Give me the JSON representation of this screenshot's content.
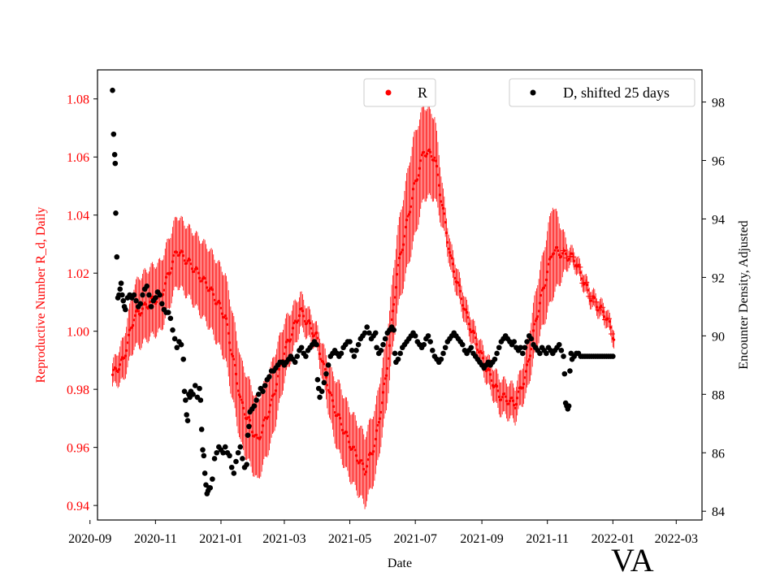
{
  "chart_data": {
    "type": "scatter",
    "region_label": "VA",
    "xlabel": "Date",
    "ylabel_left": "Reproductive Number R_d, Daily",
    "ylabel_right": "Encounter Density, Adjusted",
    "x_ticks": [
      "2020-09",
      "2020-11",
      "2021-01",
      "2021-03",
      "2021-05",
      "2021-07",
      "2021-09",
      "2021-11",
      "2022-01",
      "2022-03"
    ],
    "y_left_ticks": [
      "0.94",
      "0.96",
      "0.98",
      "1.00",
      "1.02",
      "1.04",
      "1.06",
      "1.08"
    ],
    "y_right_ticks": [
      "84",
      "86",
      "88",
      "90",
      "92",
      "94",
      "96",
      "98"
    ],
    "x_range_days": [
      -14,
      549
    ],
    "y_left_range": [
      0.935,
      1.09
    ],
    "y_right_range": [
      83.7,
      99.1
    ],
    "legend_R": "R",
    "legend_D": "D, shifted 25 days",
    "colors": {
      "R": "#ff0000",
      "D": "#000000",
      "left_axis": "#ff0000"
    },
    "series_R": {
      "name": "R",
      "start": "2020-09-22",
      "anchors": [
        [
          0,
          0.985
        ],
        [
          10,
          0.99
        ],
        [
          20,
          1.005
        ],
        [
          35,
          1.01
        ],
        [
          45,
          1.012
        ],
        [
          60,
          1.028
        ],
        [
          75,
          1.022
        ],
        [
          90,
          1.015
        ],
        [
          105,
          1.005
        ],
        [
          120,
          0.975
        ],
        [
          135,
          0.962
        ],
        [
          148,
          0.975
        ],
        [
          160,
          0.993
        ],
        [
          175,
          1.007
        ],
        [
          190,
          0.998
        ],
        [
          205,
          0.975
        ],
        [
          220,
          0.962
        ],
        [
          235,
          0.952
        ],
        [
          245,
          0.962
        ],
        [
          255,
          0.985
        ],
        [
          265,
          1.02
        ],
        [
          280,
          1.048
        ],
        [
          290,
          1.062
        ],
        [
          300,
          1.06
        ],
        [
          315,
          1.025
        ],
        [
          330,
          1.005
        ],
        [
          345,
          0.99
        ],
        [
          360,
          0.978
        ],
        [
          375,
          0.975
        ],
        [
          385,
          0.985
        ],
        [
          395,
          1.005
        ],
        [
          410,
          1.028
        ],
        [
          430,
          1.025
        ],
        [
          445,
          1.012
        ],
        [
          460,
          1.005
        ],
        [
          467,
          0.998
        ]
      ],
      "error_amplitude": [
        [
          0,
          0.004
        ],
        [
          25,
          0.012
        ],
        [
          45,
          0.012
        ],
        [
          70,
          0.012
        ],
        [
          110,
          0.015
        ],
        [
          150,
          0.013
        ],
        [
          175,
          0.006
        ],
        [
          190,
          0.004
        ],
        [
          210,
          0.012
        ],
        [
          230,
          0.012
        ],
        [
          260,
          0.012
        ],
        [
          280,
          0.018
        ],
        [
          300,
          0.014
        ],
        [
          310,
          0.005
        ],
        [
          340,
          0.004
        ],
        [
          360,
          0.006
        ],
        [
          380,
          0.006
        ],
        [
          400,
          0.012
        ],
        [
          410,
          0.016
        ],
        [
          425,
          0.003
        ],
        [
          467,
          0.003
        ]
      ]
    },
    "series_D": {
      "name": "D, shifted 25 days",
      "start": "2020-09-22",
      "points": [
        [
          0,
          98.4
        ],
        [
          1,
          96.9
        ],
        [
          2,
          96.2
        ],
        [
          2.5,
          95.9
        ],
        [
          3,
          94.2
        ],
        [
          4,
          92.7
        ],
        [
          5,
          91.3
        ],
        [
          6,
          91.4
        ],
        [
          7,
          91.6
        ],
        [
          8,
          91.8
        ],
        [
          9,
          91.4
        ],
        [
          10,
          91.2
        ],
        [
          11,
          91.0
        ],
        [
          12,
          90.9
        ],
        [
          14,
          91.3
        ],
        [
          16,
          91.4
        ],
        [
          18,
          91.3
        ],
        [
          20,
          91.4
        ],
        [
          22,
          91.2
        ],
        [
          24,
          91.0
        ],
        [
          26,
          91.1
        ],
        [
          28,
          91.4
        ],
        [
          30,
          91.6
        ],
        [
          32,
          91.7
        ],
        [
          34,
          91.4
        ],
        [
          36,
          91.0
        ],
        [
          38,
          91.2
        ],
        [
          40,
          91.3
        ],
        [
          42,
          91.5
        ],
        [
          44,
          91.4
        ],
        [
          46,
          91.1
        ],
        [
          48,
          90.9
        ],
        [
          50,
          90.8
        ],
        [
          52,
          90.8
        ],
        [
          54,
          90.6
        ],
        [
          56,
          90.2
        ],
        [
          58,
          89.9
        ],
        [
          60,
          89.6
        ],
        [
          62,
          89.8
        ],
        [
          64,
          89.7
        ],
        [
          66,
          89.2
        ],
        [
          67,
          88.1
        ],
        [
          68,
          87.8
        ],
        [
          69,
          87.3
        ],
        [
          70,
          87.1
        ],
        [
          71,
          88.0
        ],
        [
          72,
          87.9
        ],
        [
          73,
          88.1
        ],
        [
          75,
          88.0
        ],
        [
          77,
          88.3
        ],
        [
          79,
          87.9
        ],
        [
          81,
          88.2
        ],
        [
          82,
          87.8
        ],
        [
          83,
          86.8
        ],
        [
          84,
          86.1
        ],
        [
          85,
          85.9
        ],
        [
          86,
          85.3
        ],
        [
          87,
          84.9
        ],
        [
          88,
          84.6
        ],
        [
          89,
          84.7
        ],
        [
          90,
          84.8
        ],
        [
          91,
          84.8
        ],
        [
          93,
          85.1
        ],
        [
          95,
          85.8
        ],
        [
          97,
          86.0
        ],
        [
          99,
          86.2
        ],
        [
          101,
          86.1
        ],
        [
          103,
          86.0
        ],
        [
          105,
          86.2
        ],
        [
          107,
          86.0
        ],
        [
          109,
          85.9
        ],
        [
          111,
          85.5
        ],
        [
          113,
          85.3
        ],
        [
          115,
          85.7
        ],
        [
          117,
          86.0
        ],
        [
          119,
          86.2
        ],
        [
          121,
          85.8
        ],
        [
          123,
          85.5
        ],
        [
          125,
          85.6
        ],
        [
          126,
          86.6
        ],
        [
          127,
          86.9
        ],
        [
          128,
          87.4
        ],
        [
          130,
          87.5
        ],
        [
          132,
          87.6
        ],
        [
          134,
          87.8
        ],
        [
          136,
          88.0
        ],
        [
          138,
          88.2
        ],
        [
          140,
          88.1
        ],
        [
          142,
          88.3
        ],
        [
          144,
          88.5
        ],
        [
          146,
          88.6
        ],
        [
          148,
          88.8
        ],
        [
          150,
          88.8
        ],
        [
          152,
          88.9
        ],
        [
          154,
          89.0
        ],
        [
          156,
          89.1
        ],
        [
          158,
          89.1
        ],
        [
          160,
          89.0
        ],
        [
          162,
          89.1
        ],
        [
          164,
          89.2
        ],
        [
          166,
          89.3
        ],
        [
          168,
          89.2
        ],
        [
          170,
          89.1
        ],
        [
          172,
          89.3
        ],
        [
          174,
          89.5
        ],
        [
          176,
          89.6
        ],
        [
          178,
          89.4
        ],
        [
          180,
          89.3
        ],
        [
          182,
          89.5
        ],
        [
          184,
          89.6
        ],
        [
          186,
          89.7
        ],
        [
          188,
          89.8
        ],
        [
          190,
          89.7
        ],
        [
          191,
          88.5
        ],
        [
          192,
          88.2
        ],
        [
          193,
          87.9
        ],
        [
          195,
          88.1
        ],
        [
          197,
          88.4
        ],
        [
          199,
          88.7
        ],
        [
          201,
          89.0
        ],
        [
          203,
          89.3
        ],
        [
          205,
          89.4
        ],
        [
          207,
          89.5
        ],
        [
          209,
          89.4
        ],
        [
          211,
          89.3
        ],
        [
          213,
          89.4
        ],
        [
          215,
          89.6
        ],
        [
          217,
          89.7
        ],
        [
          219,
          89.8
        ],
        [
          221,
          89.8
        ],
        [
          223,
          89.5
        ],
        [
          225,
          89.3
        ],
        [
          227,
          89.5
        ],
        [
          229,
          89.7
        ],
        [
          231,
          89.9
        ],
        [
          233,
          90.0
        ],
        [
          235,
          90.1
        ],
        [
          237,
          90.3
        ],
        [
          239,
          90.1
        ],
        [
          241,
          89.9
        ],
        [
          243,
          90.0
        ],
        [
          245,
          90.1
        ],
        [
          246,
          89.6
        ],
        [
          248,
          89.4
        ],
        [
          250,
          89.5
        ],
        [
          252,
          89.7
        ],
        [
          254,
          89.9
        ],
        [
          256,
          90.1
        ],
        [
          258,
          90.2
        ],
        [
          260,
          90.3
        ],
        [
          262,
          90.2
        ],
        [
          263,
          89.4
        ],
        [
          264,
          89.1
        ],
        [
          266,
          89.2
        ],
        [
          268,
          89.4
        ],
        [
          270,
          89.6
        ],
        [
          272,
          89.7
        ],
        [
          274,
          89.8
        ],
        [
          276,
          89.9
        ],
        [
          278,
          90.0
        ],
        [
          280,
          90.1
        ],
        [
          282,
          90.0
        ],
        [
          284,
          89.8
        ],
        [
          286,
          89.7
        ],
        [
          288,
          89.6
        ],
        [
          290,
          89.7
        ],
        [
          292,
          89.9
        ],
        [
          294,
          90.0
        ],
        [
          296,
          89.8
        ],
        [
          298,
          89.5
        ],
        [
          300,
          89.3
        ],
        [
          302,
          89.2
        ],
        [
          304,
          89.1
        ],
        [
          306,
          89.2
        ],
        [
          308,
          89.4
        ],
        [
          310,
          89.6
        ],
        [
          312,
          89.8
        ],
        [
          314,
          89.9
        ],
        [
          316,
          90.0
        ],
        [
          318,
          90.1
        ],
        [
          320,
          90.0
        ],
        [
          322,
          89.9
        ],
        [
          324,
          89.8
        ],
        [
          326,
          89.7
        ],
        [
          328,
          89.5
        ],
        [
          330,
          89.4
        ],
        [
          332,
          89.5
        ],
        [
          334,
          89.6
        ],
        [
          336,
          89.4
        ],
        [
          338,
          89.3
        ],
        [
          340,
          89.2
        ],
        [
          342,
          89.1
        ],
        [
          344,
          89.0
        ],
        [
          346,
          88.9
        ],
        [
          348,
          89.0
        ],
        [
          350,
          89.1
        ],
        [
          352,
          89.0
        ],
        [
          354,
          89.1
        ],
        [
          356,
          89.2
        ],
        [
          358,
          89.4
        ],
        [
          360,
          89.6
        ],
        [
          362,
          89.8
        ],
        [
          364,
          89.9
        ],
        [
          366,
          90.0
        ],
        [
          368,
          89.9
        ],
        [
          370,
          89.8
        ],
        [
          372,
          89.7
        ],
        [
          374,
          89.8
        ],
        [
          376,
          89.6
        ],
        [
          378,
          89.5
        ],
        [
          380,
          89.6
        ],
        [
          382,
          89.4
        ],
        [
          384,
          89.6
        ],
        [
          386,
          89.8
        ],
        [
          388,
          90.0
        ],
        [
          390,
          89.9
        ],
        [
          392,
          89.7
        ],
        [
          394,
          89.6
        ],
        [
          396,
          89.5
        ],
        [
          398,
          89.4
        ],
        [
          400,
          89.6
        ],
        [
          402,
          89.5
        ],
        [
          404,
          89.4
        ],
        [
          406,
          89.6
        ],
        [
          408,
          89.5
        ],
        [
          410,
          89.4
        ],
        [
          412,
          89.5
        ],
        [
          414,
          89.6
        ],
        [
          416,
          89.7
        ],
        [
          418,
          89.5
        ],
        [
          420,
          89.3
        ],
        [
          421,
          88.7
        ],
        [
          422,
          87.7
        ],
        [
          423,
          87.6
        ],
        [
          424,
          87.5
        ],
        [
          425,
          87.6
        ],
        [
          426,
          88.8
        ],
        [
          427,
          89.4
        ],
        [
          428,
          89.2
        ],
        [
          430,
          89.3
        ],
        [
          432,
          89.4
        ],
        [
          434,
          89.4
        ],
        [
          436,
          89.3
        ],
        [
          438,
          89.3
        ],
        [
          440,
          89.3
        ],
        [
          442,
          89.3
        ],
        [
          444,
          89.3
        ],
        [
          446,
          89.3
        ],
        [
          448,
          89.3
        ],
        [
          450,
          89.3
        ],
        [
          452,
          89.3
        ],
        [
          454,
          89.3
        ],
        [
          456,
          89.3
        ],
        [
          458,
          89.3
        ],
        [
          460,
          89.3
        ],
        [
          462,
          89.3
        ],
        [
          464,
          89.3
        ],
        [
          466,
          89.3
        ]
      ]
    }
  }
}
